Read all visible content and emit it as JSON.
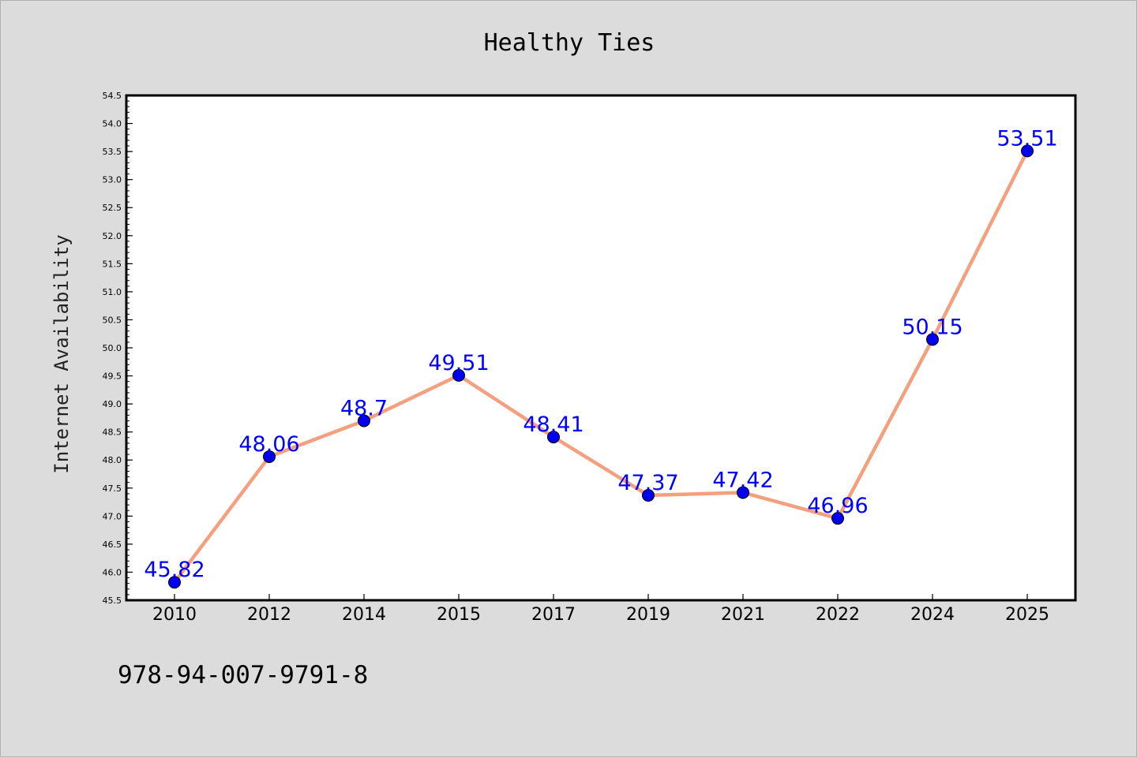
{
  "chart_data": {
    "type": "line",
    "title": "Healthy Ties",
    "xlabel": "",
    "ylabel": "Internet Availability",
    "categories": [
      "2010",
      "2012",
      "2014",
      "2015",
      "2017",
      "2019",
      "2021",
      "2022",
      "2024",
      "2025"
    ],
    "series": [
      {
        "values": [
          45.82,
          48.06,
          48.7,
          49.51,
          48.41,
          47.37,
          47.42,
          46.96,
          50.15,
          53.51
        ],
        "labels": [
          "45.82",
          "48.06",
          "48.7",
          "49.51",
          "48.41",
          "47.37",
          "47.42",
          "46.96",
          "50.15",
          "53.51"
        ],
        "line_color": "#f4a07f",
        "marker_color": "#0000ee"
      }
    ],
    "ylim": [
      45.5,
      54.5
    ],
    "yticks": [
      "45.5",
      "46.0",
      "46.5",
      "47.0",
      "47.5",
      "48.0",
      "48.5",
      "49.0",
      "49.5",
      "50.0",
      "50.5",
      "51.0",
      "51.5",
      "52.0",
      "52.5",
      "53.0",
      "53.5",
      "54.0",
      "54.5"
    ],
    "grid": false,
    "legend": "none"
  },
  "annotation": {
    "text": "978-94-007-9791-8"
  }
}
